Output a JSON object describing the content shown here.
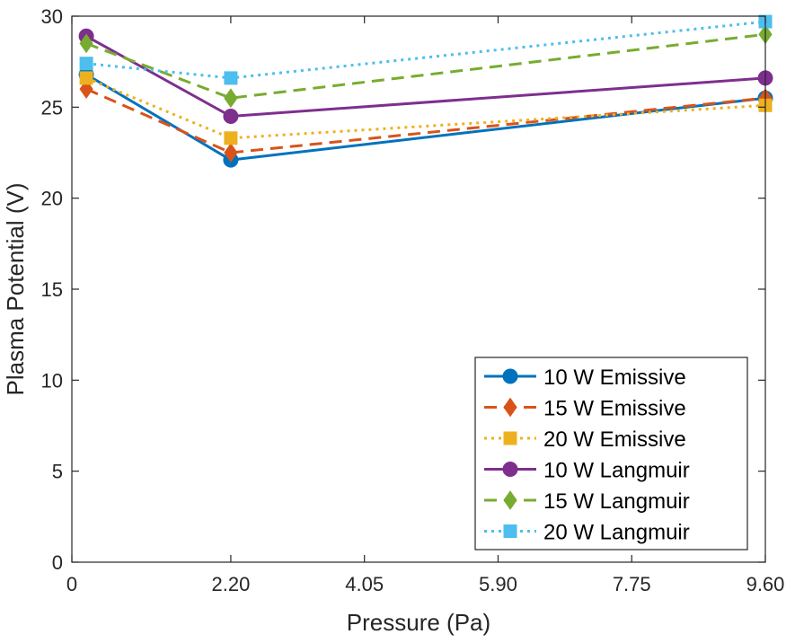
{
  "chart_data": {
    "type": "line",
    "xlabel": "Pressure (Pa)",
    "ylabel": "Plasma Potential (V)",
    "xlim": [
      0,
      9.6
    ],
    "ylim": [
      0,
      30
    ],
    "xticks": [
      0,
      2.2,
      4.05,
      5.9,
      7.75,
      9.6
    ],
    "xtick_labels": [
      "0",
      "2.20",
      "4.05",
      "5.90",
      "7.75",
      "9.60"
    ],
    "yticks": [
      0,
      5,
      10,
      15,
      20,
      25,
      30
    ],
    "ytick_labels": [
      "0",
      "5",
      "10",
      "15",
      "20",
      "25",
      "30"
    ],
    "grid": false,
    "legend_position": "bottom-right",
    "x": [
      0.2,
      2.2,
      9.6
    ],
    "series": [
      {
        "name": "10 W Emissive",
        "values": [
          26.8,
          22.1,
          25.5
        ],
        "color": "#0072BD",
        "line": "solid",
        "marker": "circle"
      },
      {
        "name": "15 W Emissive",
        "values": [
          26.0,
          22.5,
          25.5
        ],
        "color": "#D95319",
        "line": "dashed",
        "marker": "diamond"
      },
      {
        "name": "20 W Emissive",
        "values": [
          26.6,
          23.3,
          25.1
        ],
        "color": "#EDB120",
        "line": "dotted",
        "marker": "square"
      },
      {
        "name": "10 W Langmuir",
        "values": [
          28.9,
          24.5,
          26.6
        ],
        "color": "#7E2F8E",
        "line": "solid",
        "marker": "circle"
      },
      {
        "name": "15 W Langmuir",
        "values": [
          28.5,
          25.5,
          29.0
        ],
        "color": "#77AC30",
        "line": "dashed",
        "marker": "diamond"
      },
      {
        "name": "20 W Langmuir",
        "values": [
          27.4,
          26.6,
          29.7
        ],
        "color": "#4DBEEE",
        "line": "dotted",
        "marker": "square"
      }
    ]
  }
}
